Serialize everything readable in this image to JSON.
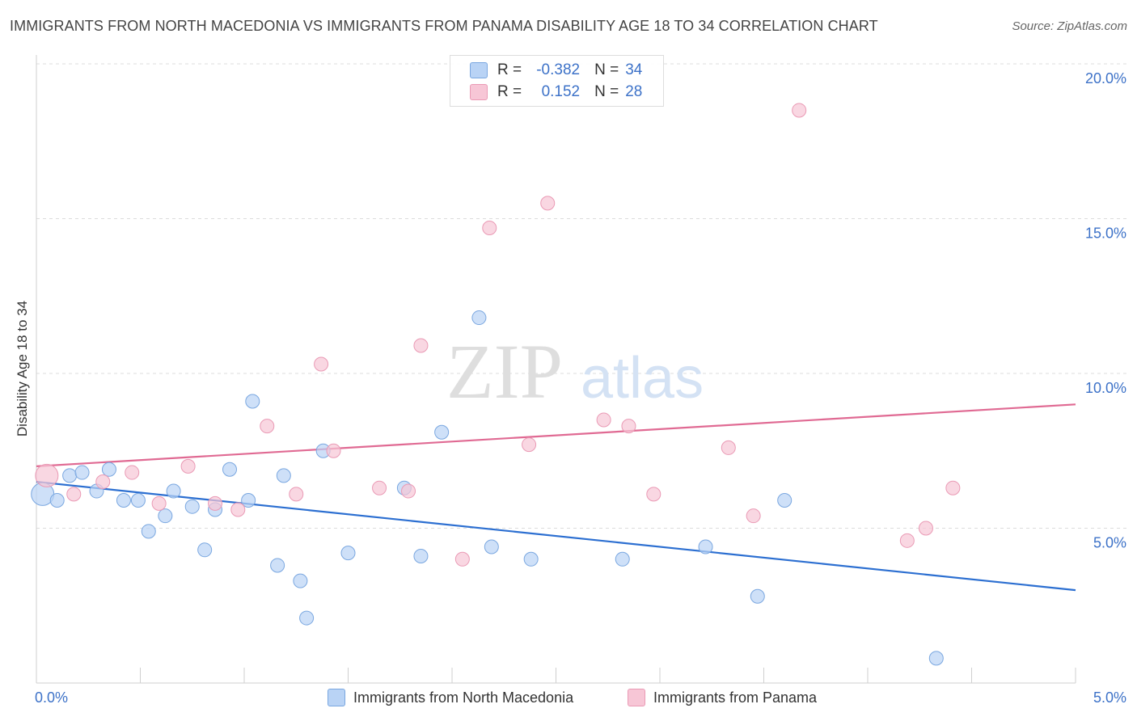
{
  "title": "IMMIGRANTS FROM NORTH MACEDONIA VS IMMIGRANTS FROM PANAMA DISABILITY AGE 18 TO 34 CORRELATION CHART",
  "source": "Source: ZipAtlas.com",
  "watermark": {
    "zip": "ZIP",
    "atlas": "atlas"
  },
  "colors": {
    "blue_fill": "#b9d3f5",
    "blue_stroke": "#7aa7e0",
    "blue_line": "#2c6fd1",
    "pink_fill": "#f7c6d6",
    "pink_stroke": "#ea9ab5",
    "pink_line": "#e06a93",
    "accent_text": "#3d72c8"
  },
  "legend": {
    "rows": [
      {
        "r_label": "R =",
        "r_value": "-0.382",
        "n_label": "N =",
        "n_value": "34"
      },
      {
        "r_label": "R =",
        "r_value": "0.152",
        "n_label": "N =",
        "n_value": "28"
      }
    ]
  },
  "bottom_legend": {
    "series1": "Immigrants from North Macedonia",
    "series2": "Immigrants from Panama"
  },
  "chart_data": {
    "type": "scatter",
    "title": "IMMIGRANTS FROM NORTH MACEDONIA VS IMMIGRANTS FROM PANAMA DISABILITY AGE 18 TO 34 CORRELATION CHART",
    "xlabel": "",
    "ylabel": "Disability Age 18 to 34",
    "xlim": [
      0,
      5
    ],
    "ylim": [
      0,
      20
    ],
    "x_tick_labels": [
      "0.0%",
      "5.0%"
    ],
    "y_ticks": [
      5,
      10,
      15,
      20
    ],
    "y_tick_labels": [
      "5.0%",
      "10.0%",
      "15.0%",
      "20.0%"
    ],
    "grid": true,
    "legend_position": "top-center",
    "series": [
      {
        "name": "Immigrants from North Macedonia",
        "color": "blue",
        "points": [
          [
            0.03,
            6.1
          ],
          [
            0.1,
            5.9
          ],
          [
            0.16,
            6.7
          ],
          [
            0.22,
            6.8
          ],
          [
            0.29,
            6.2
          ],
          [
            0.35,
            6.9
          ],
          [
            0.42,
            5.9
          ],
          [
            0.49,
            5.9
          ],
          [
            0.54,
            4.9
          ],
          [
            0.62,
            5.4
          ],
          [
            0.66,
            6.2
          ],
          [
            0.75,
            5.7
          ],
          [
            0.81,
            4.3
          ],
          [
            0.86,
            5.6
          ],
          [
            0.93,
            6.9
          ],
          [
            1.02,
            5.9
          ],
          [
            1.04,
            9.1
          ],
          [
            1.16,
            3.8
          ],
          [
            1.19,
            6.7
          ],
          [
            1.27,
            3.3
          ],
          [
            1.3,
            2.1
          ],
          [
            1.38,
            7.5
          ],
          [
            1.5,
            4.2
          ],
          [
            1.77,
            6.3
          ],
          [
            1.85,
            4.1
          ],
          [
            1.95,
            8.1
          ],
          [
            2.13,
            11.8
          ],
          [
            2.19,
            4.4
          ],
          [
            2.38,
            4.0
          ],
          [
            2.82,
            4.0
          ],
          [
            3.22,
            4.4
          ],
          [
            3.47,
            2.8
          ],
          [
            3.6,
            5.9
          ],
          [
            4.33,
            0.8
          ]
        ],
        "trend": [
          [
            0,
            6.5
          ],
          [
            5,
            3.0
          ]
        ]
      },
      {
        "name": "Immigrants from Panama",
        "color": "pink",
        "points": [
          [
            0.05,
            6.7
          ],
          [
            0.18,
            6.1
          ],
          [
            0.32,
            6.5
          ],
          [
            0.46,
            6.8
          ],
          [
            0.59,
            5.8
          ],
          [
            0.73,
            7.0
          ],
          [
            0.86,
            5.8
          ],
          [
            0.97,
            5.6
          ],
          [
            1.11,
            8.3
          ],
          [
            1.25,
            6.1
          ],
          [
            1.37,
            10.3
          ],
          [
            1.43,
            7.5
          ],
          [
            1.65,
            6.3
          ],
          [
            1.79,
            6.2
          ],
          [
            1.85,
            10.9
          ],
          [
            2.05,
            4.0
          ],
          [
            2.18,
            14.7
          ],
          [
            2.37,
            7.7
          ],
          [
            2.46,
            15.5
          ],
          [
            2.73,
            8.5
          ],
          [
            2.85,
            8.3
          ],
          [
            2.97,
            6.1
          ],
          [
            3.33,
            7.6
          ],
          [
            3.45,
            5.4
          ],
          [
            3.67,
            18.5
          ],
          [
            4.19,
            4.6
          ],
          [
            4.28,
            5.0
          ],
          [
            4.41,
            6.3
          ]
        ],
        "trend": [
          [
            0,
            7.0
          ],
          [
            5,
            9.0
          ]
        ]
      }
    ]
  }
}
